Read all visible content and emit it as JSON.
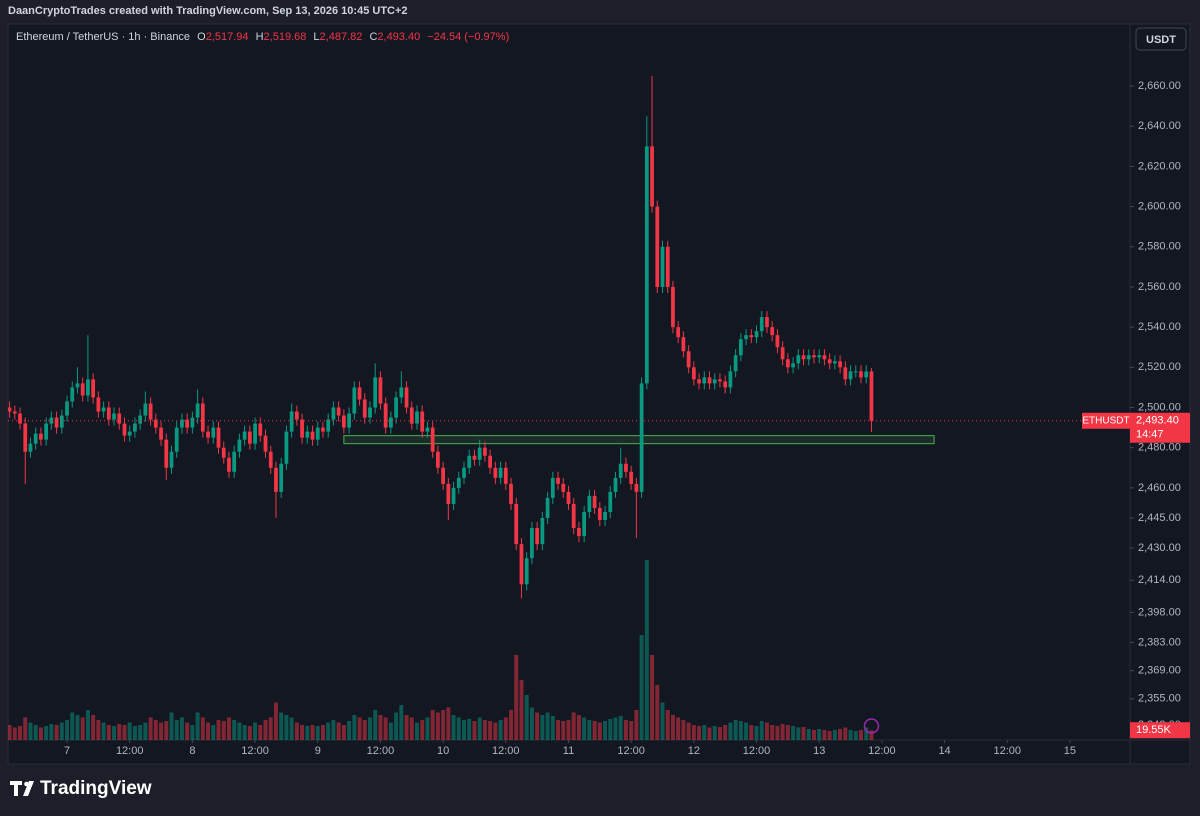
{
  "banner": "DaanCryptoTrades created with TradingView.com, Sep 13, 2026 10:45 UTC+2",
  "logo": "TradingView",
  "header": {
    "symbol": "Ethereum / TetherUS · 1h · Binance",
    "ohlc": [
      {
        "key": "O",
        "value": "2,517.94"
      },
      {
        "key": "H",
        "value": "2,519.68"
      },
      {
        "key": "L",
        "value": "2,487.82"
      },
      {
        "key": "C",
        "value": "2,493.40"
      }
    ],
    "change": "−24.54 (−0.97%)"
  },
  "currency": "USDT",
  "chart_data": {
    "type": "candlestick",
    "up_color": "#089981",
    "down_color": "#f23645",
    "ylim": [
      2334.5,
      2688.9
    ],
    "xlim": [
      -0.3,
      214.5
    ],
    "grid": false,
    "yticks": [
      {
        "value": 2660,
        "label": "2,660.00"
      },
      {
        "value": 2640,
        "label": "2,640.00"
      },
      {
        "value": 2620,
        "label": "2,620.00"
      },
      {
        "value": 2600,
        "label": "2,600.00"
      },
      {
        "value": 2580,
        "label": "2,580.00"
      },
      {
        "value": 2560,
        "label": "2,560.00"
      },
      {
        "value": 2540,
        "label": "2,540.00"
      },
      {
        "value": 2520,
        "label": "2,520.00"
      },
      {
        "value": 2500,
        "label": "2,500.00"
      },
      {
        "value": 2480,
        "label": "2,480.00"
      },
      {
        "value": 2460,
        "label": "2,460.00"
      },
      {
        "value": 2445,
        "label": "2,445.00"
      },
      {
        "value": 2430,
        "label": "2,430.00"
      },
      {
        "value": 2414,
        "label": "2,414.00"
      },
      {
        "value": 2398,
        "label": "2,398.00"
      },
      {
        "value": 2383,
        "label": "2,383.00"
      },
      {
        "value": 2369,
        "label": "2,369.00"
      },
      {
        "value": 2355,
        "label": "2,355.00"
      },
      {
        "value": 2342,
        "label": "2,342.00"
      }
    ],
    "xticks": [
      {
        "value": 11,
        "label": "7"
      },
      {
        "value": 23,
        "label": "12:00"
      },
      {
        "value": 35,
        "label": "8"
      },
      {
        "value": 47,
        "label": "12:00"
      },
      {
        "value": 59,
        "label": "9"
      },
      {
        "value": 71,
        "label": "12:00"
      },
      {
        "value": 83,
        "label": "10"
      },
      {
        "value": 95,
        "label": "12:00"
      },
      {
        "value": 107,
        "label": "11"
      },
      {
        "value": 119,
        "label": "12:00"
      },
      {
        "value": 131,
        "label": "12"
      },
      {
        "value": 143,
        "label": "12:00"
      },
      {
        "value": 155,
        "label": "13"
      },
      {
        "value": 167,
        "label": "12:00"
      },
      {
        "value": 179,
        "label": "14"
      },
      {
        "value": 191,
        "label": "12:00"
      },
      {
        "value": 203,
        "label": "15"
      }
    ],
    "open": [
      2500,
      2498,
      2497,
      2492,
      2478,
      2482,
      2487,
      2484,
      2492,
      2495,
      2490,
      2496,
      2503,
      2510,
      2512,
      2506,
      2514,
      2505,
      2498,
      2500,
      2494,
      2497,
      2492,
      2486,
      2488,
      2492,
      2496,
      2502,
      2494,
      2490,
      2484,
      2470,
      2478,
      2490,
      2494,
      2490,
      2495,
      2502,
      2488,
      2485,
      2490,
      2480,
      2475,
      2468,
      2478,
      2484,
      2488,
      2482,
      2492,
      2486,
      2478,
      2470,
      2458,
      2472,
      2488,
      2498,
      2494,
      2485,
      2488,
      2484,
      2490,
      2488,
      2494,
      2500,
      2496,
      2490,
      2497,
      2510,
      2504,
      2495,
      2500,
      2515,
      2502,
      2490,
      2495,
      2505,
      2510,
      2500,
      2492,
      2498,
      2488,
      2490,
      2478,
      2470,
      2462,
      2452,
      2460,
      2465,
      2470,
      2476,
      2474,
      2480,
      2476,
      2470,
      2465,
      2470,
      2462,
      2452,
      2432,
      2412,
      2425,
      2440,
      2432,
      2445,
      2455,
      2465,
      2462,
      2458,
      2452,
      2440,
      2436,
      2448,
      2456,
      2450,
      2444,
      2448,
      2458,
      2465,
      2472,
      2468,
      2462,
      2458,
      2512,
      2630,
      2600,
      2560,
      2580,
      2560,
      2540,
      2535,
      2528,
      2520,
      2514,
      2512,
      2515,
      2512,
      2514,
      2513,
      2510,
      2518,
      2526,
      2534,
      2536,
      2535,
      2538,
      2545,
      2540,
      2536,
      2530,
      2524,
      2520,
      2522,
      2526,
      2524,
      2526,
      2525,
      2526,
      2524,
      2522,
      2523,
      2520,
      2514,
      2518,
      2518,
      2515,
      2517.94
    ],
    "high": [
      2503,
      2501,
      2500,
      2495,
      2485,
      2490,
      2490,
      2495,
      2498,
      2498,
      2499,
      2506,
      2513,
      2520,
      2515,
      2536,
      2517,
      2508,
      2503,
      2503,
      2500,
      2500,
      2495,
      2491,
      2495,
      2499,
      2508,
      2505,
      2497,
      2493,
      2487,
      2481,
      2493,
      2497,
      2497,
      2498,
      2509,
      2505,
      2491,
      2493,
      2493,
      2483,
      2478,
      2481,
      2487,
      2491,
      2491,
      2495,
      2495,
      2489,
      2481,
      2473,
      2475,
      2491,
      2502,
      2501,
      2497,
      2491,
      2491,
      2493,
      2493,
      2497,
      2503,
      2503,
      2499,
      2500,
      2513,
      2513,
      2507,
      2503,
      2522,
      2518,
      2505,
      2498,
      2508,
      2518,
      2513,
      2503,
      2501,
      2501,
      2493,
      2493,
      2481,
      2473,
      2465,
      2463,
      2468,
      2473,
      2479,
      2479,
      2484,
      2483,
      2479,
      2473,
      2473,
      2473,
      2465,
      2455,
      2435,
      2428,
      2443,
      2443,
      2448,
      2458,
      2468,
      2468,
      2465,
      2461,
      2455,
      2443,
      2451,
      2459,
      2459,
      2453,
      2451,
      2461,
      2468,
      2480,
      2475,
      2471,
      2465,
      2515,
      2645,
      2665,
      2603,
      2583,
      2583,
      2563,
      2543,
      2538,
      2531,
      2523,
      2517,
      2518,
      2518,
      2517,
      2517,
      2516,
      2521,
      2529,
      2537,
      2539,
      2539,
      2541,
      2548,
      2548,
      2543,
      2539,
      2533,
      2527,
      2525,
      2529,
      2529,
      2529,
      2529,
      2529,
      2529,
      2527,
      2526,
      2526,
      2523,
      2521,
      2521,
      2521,
      2521,
      2519.68
    ],
    "low": [
      2495,
      2494,
      2489,
      2462,
      2475,
      2479,
      2481,
      2481,
      2489,
      2487,
      2487,
      2493,
      2500,
      2507,
      2503,
      2503,
      2502,
      2495,
      2495,
      2491,
      2491,
      2489,
      2483,
      2483,
      2485,
      2489,
      2493,
      2491,
      2487,
      2481,
      2464,
      2467,
      2475,
      2487,
      2487,
      2487,
      2492,
      2485,
      2482,
      2482,
      2477,
      2472,
      2465,
      2465,
      2475,
      2481,
      2479,
      2479,
      2483,
      2475,
      2467,
      2445,
      2455,
      2469,
      2485,
      2491,
      2482,
      2482,
      2481,
      2481,
      2485,
      2485,
      2491,
      2493,
      2487,
      2487,
      2494,
      2501,
      2492,
      2492,
      2497,
      2499,
      2487,
      2487,
      2492,
      2502,
      2497,
      2489,
      2489,
      2485,
      2485,
      2475,
      2467,
      2459,
      2444,
      2449,
      2457,
      2462,
      2467,
      2471,
      2471,
      2473,
      2467,
      2462,
      2462,
      2459,
      2449,
      2429,
      2405,
      2409,
      2422,
      2429,
      2429,
      2442,
      2452,
      2459,
      2455,
      2449,
      2437,
      2433,
      2433,
      2445,
      2447,
      2441,
      2441,
      2445,
      2455,
      2462,
      2465,
      2459,
      2435,
      2455,
      2509,
      2597,
      2557,
      2557,
      2557,
      2537,
      2532,
      2525,
      2517,
      2511,
      2509,
      2509,
      2509,
      2509,
      2510,
      2507,
      2507,
      2515,
      2523,
      2531,
      2532,
      2532,
      2535,
      2537,
      2533,
      2527,
      2521,
      2517,
      2517,
      2519,
      2521,
      2521,
      2522,
      2522,
      2521,
      2519,
      2519,
      2517,
      2511,
      2511,
      2515,
      2512,
      2512,
      2487.82
    ],
    "close": [
      2498,
      2497,
      2492,
      2478,
      2482,
      2487,
      2484,
      2492,
      2495,
      2490,
      2496,
      2503,
      2510,
      2512,
      2506,
      2514,
      2505,
      2498,
      2500,
      2494,
      2497,
      2492,
      2486,
      2488,
      2492,
      2496,
      2502,
      2494,
      2490,
      2484,
      2470,
      2478,
      2490,
      2494,
      2490,
      2495,
      2502,
      2488,
      2485,
      2490,
      2480,
      2475,
      2468,
      2478,
      2484,
      2488,
      2482,
      2492,
      2486,
      2478,
      2470,
      2458,
      2472,
      2488,
      2498,
      2494,
      2485,
      2488,
      2484,
      2490,
      2488,
      2494,
      2500,
      2496,
      2490,
      2497,
      2510,
      2504,
      2495,
      2500,
      2515,
      2502,
      2490,
      2495,
      2505,
      2510,
      2500,
      2492,
      2498,
      2488,
      2490,
      2478,
      2470,
      2462,
      2452,
      2460,
      2465,
      2470,
      2476,
      2474,
      2480,
      2476,
      2470,
      2465,
      2470,
      2462,
      2452,
      2432,
      2412,
      2425,
      2440,
      2432,
      2445,
      2455,
      2465,
      2462,
      2458,
      2452,
      2440,
      2436,
      2448,
      2456,
      2450,
      2444,
      2448,
      2458,
      2465,
      2472,
      2468,
      2462,
      2458,
      2512,
      2630,
      2600,
      2560,
      2580,
      2560,
      2540,
      2535,
      2528,
      2520,
      2514,
      2512,
      2515,
      2512,
      2514,
      2513,
      2510,
      2518,
      2526,
      2534,
      2536,
      2535,
      2538,
      2545,
      2540,
      2536,
      2530,
      2524,
      2520,
      2522,
      2526,
      2524,
      2526,
      2525,
      2526,
      2524,
      2522,
      2523,
      2520,
      2514,
      2518,
      2518,
      2515,
      2517.94,
      2493.4
    ],
    "volume": [
      30,
      25,
      28,
      45,
      35,
      30,
      25,
      28,
      32,
      30,
      35,
      40,
      55,
      50,
      45,
      60,
      50,
      40,
      35,
      30,
      28,
      32,
      30,
      35,
      28,
      30,
      35,
      45,
      40,
      35,
      38,
      55,
      40,
      45,
      35,
      30,
      55,
      45,
      35,
      30,
      40,
      38,
      45,
      40,
      35,
      30,
      28,
      35,
      30,
      40,
      45,
      75,
      55,
      50,
      45,
      35,
      30,
      28,
      30,
      28,
      30,
      35,
      40,
      35,
      30,
      38,
      50,
      45,
      40,
      45,
      60,
      50,
      45,
      35,
      55,
      70,
      50,
      45,
      35,
      40,
      45,
      60,
      55,
      60,
      65,
      50,
      45,
      40,
      42,
      38,
      45,
      40,
      38,
      35,
      40,
      45,
      60,
      170,
      120,
      90,
      65,
      55,
      50,
      55,
      48,
      40,
      38,
      40,
      55,
      50,
      45,
      40,
      38,
      35,
      38,
      42,
      45,
      48,
      40,
      38,
      60,
      210,
      360,
      170,
      110,
      75,
      60,
      50,
      45,
      40,
      35,
      30,
      28,
      30,
      25,
      28,
      26,
      30,
      35,
      40,
      38,
      35,
      30,
      28,
      38,
      35,
      30,
      28,
      32,
      30,
      28,
      25,
      26,
      22,
      20,
      22,
      20,
      18,
      20,
      22,
      25,
      20,
      18,
      20,
      25,
      19.55
    ],
    "volume_label": "19.55K",
    "price_tag": {
      "symbol": "ETHUSDT",
      "countdown": "14:47"
    },
    "zone": {
      "low": 2482,
      "high": 2486,
      "from": 64,
      "to": 177,
      "color": "#4caf50"
    }
  }
}
